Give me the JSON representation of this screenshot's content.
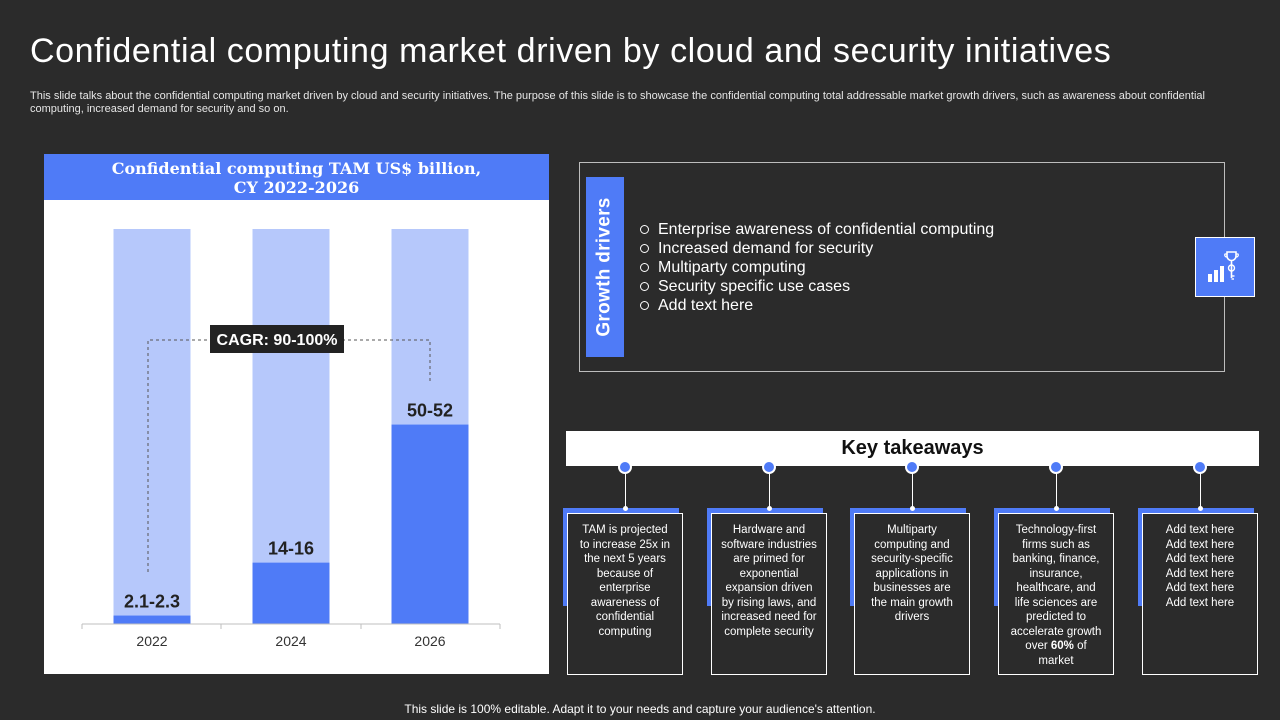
{
  "slide": {
    "title": "Confidential computing market driven by cloud and security initiatives",
    "subtitle": "This slide talks about the confidential computing market driven by cloud and security initiatives. The purpose of this slide is to showcase the confidential computing total addressable market growth drivers, such as awareness about confidential computing, increased demand for security and so on.",
    "footer": "This slide is 100% editable. Adapt it to your needs and capture your audience's attention."
  },
  "chart_data": {
    "type": "bar",
    "title_line1": "Confidential  computing  TAM US$ billion,",
    "title_line2": "CY 2022-2026",
    "categories": [
      "2022",
      "2024",
      "2026"
    ],
    "values": [
      2.2,
      16,
      52
    ],
    "value_labels": [
      "2.1-2.3",
      "14-16",
      "50-52"
    ],
    "ylim": [
      0,
      103
    ],
    "annotation": "CAGR: 90-100%",
    "colors": {
      "bar": "#4f7bf7",
      "background_bar": "#b6c8fb",
      "header": "#4f7bf7"
    }
  },
  "growth_drivers": {
    "label": "Growth drivers",
    "items": [
      "Enterprise awareness of confidential computing",
      "Increased demand for security",
      "Multiparty  computing",
      "Security specific use cases",
      "Add text here"
    ],
    "icon": "growth-chart-trophy-icon"
  },
  "key_takeaways": {
    "title": "Key takeaways",
    "cards": [
      {
        "lines": [
          "TAM  is projected",
          "to increase 25x in",
          "the next 5 years",
          "because of",
          "enterprise",
          "awareness of",
          "confidential",
          "computing"
        ]
      },
      {
        "lines": [
          "Hardware and",
          "software industries",
          "are primed for",
          "exponential",
          "expansion driven",
          "by rising laws, and",
          "increased need for",
          "complete security"
        ]
      },
      {
        "lines": [
          "Multiparty",
          "computing and",
          "security-specific",
          "applications in",
          "businesses are",
          "the main growth",
          "drivers"
        ]
      },
      {
        "lines": [
          "Technology-first",
          "firms such as",
          "banking, finance,",
          "insurance,",
          "healthcare, and",
          "life sciences are",
          "predicted to",
          "accelerate growth"
        ],
        "bold_line_prefix": "over ",
        "bold_value": "60%",
        "bold_line_suffix": " of",
        "last_line": "market"
      },
      {
        "lines": [
          "Add text here",
          "Add text here",
          "Add text here",
          "Add text here",
          "Add text here",
          "Add text here"
        ]
      }
    ]
  }
}
